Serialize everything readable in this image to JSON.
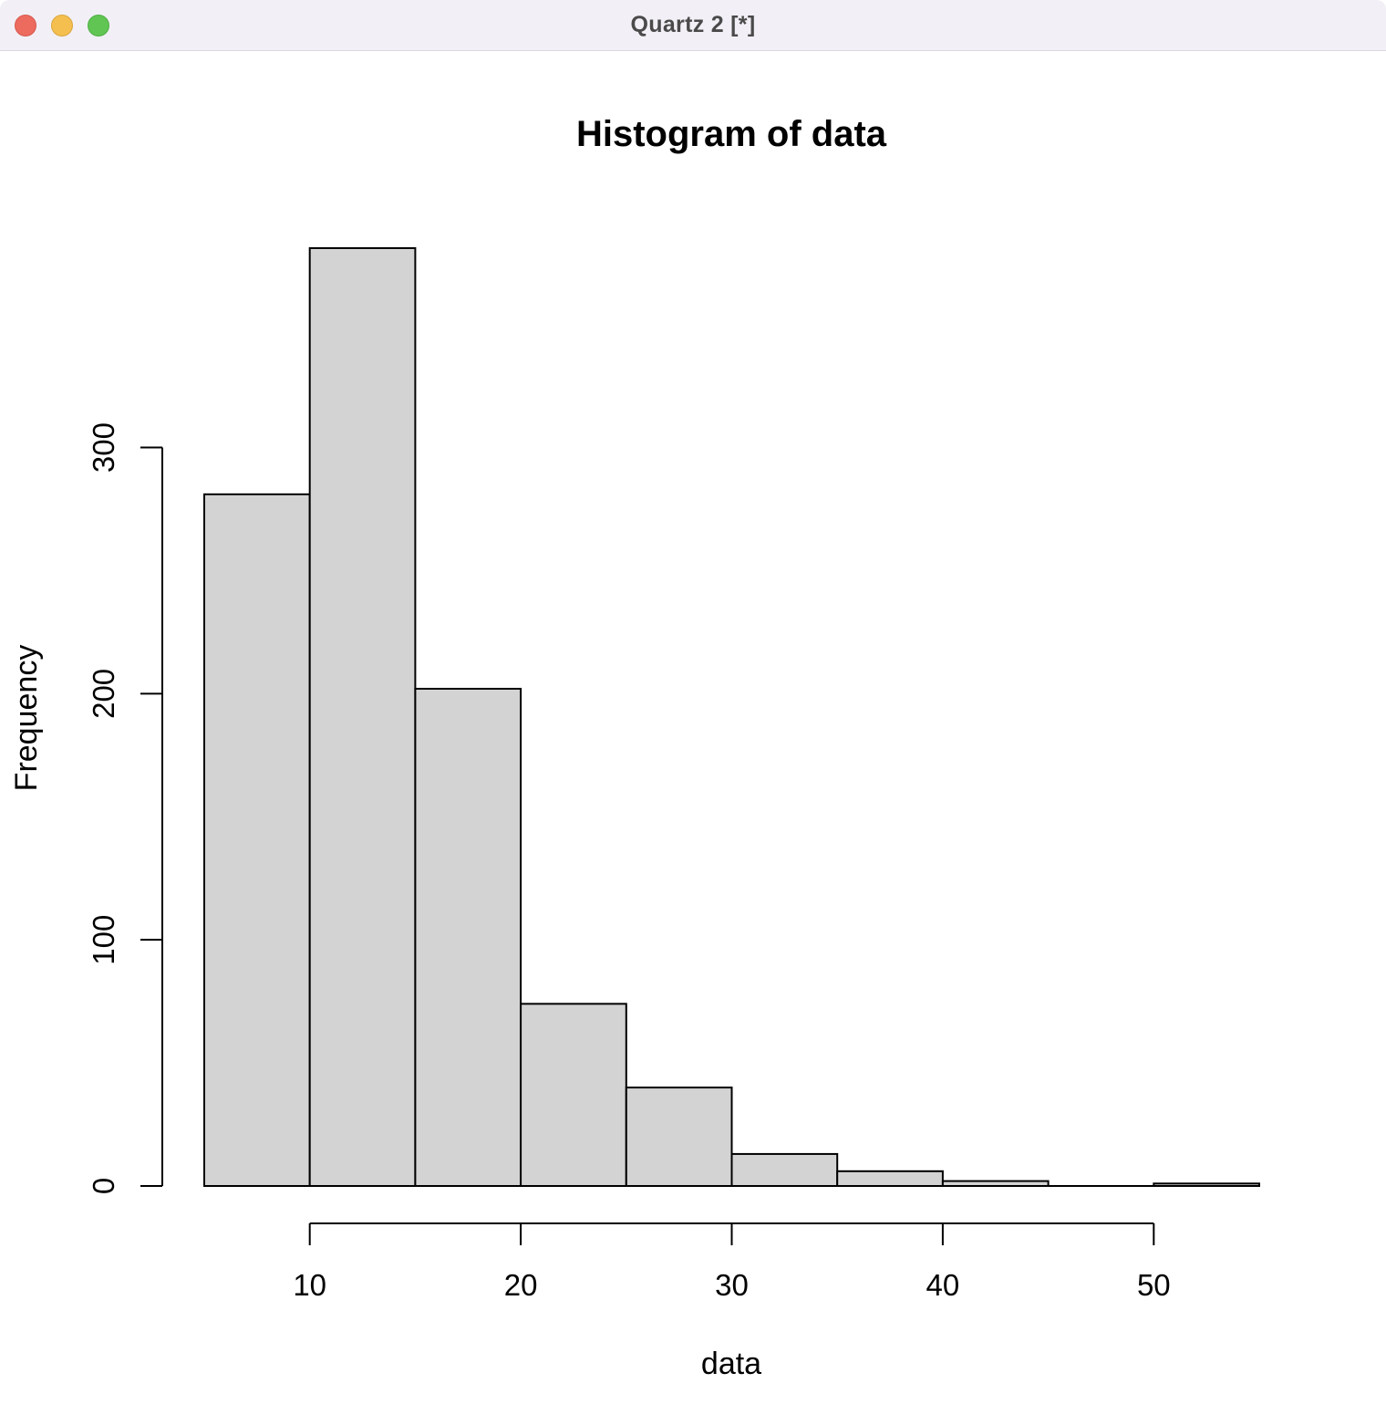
{
  "window": {
    "title": "Quartz 2 [*]",
    "buttons": {
      "close": "close-button",
      "minimize": "minimize-button",
      "zoom": "zoom-button"
    }
  },
  "chart_data": {
    "type": "bar",
    "title": "Histogram of data",
    "xlabel": "data",
    "ylabel": "Frequency",
    "bins": [
      {
        "start": 5,
        "end": 10,
        "count": 281
      },
      {
        "start": 10,
        "end": 15,
        "count": 381
      },
      {
        "start": 15,
        "end": 20,
        "count": 202
      },
      {
        "start": 20,
        "end": 25,
        "count": 74
      },
      {
        "start": 25,
        "end": 30,
        "count": 40
      },
      {
        "start": 30,
        "end": 35,
        "count": 13
      },
      {
        "start": 35,
        "end": 40,
        "count": 6
      },
      {
        "start": 40,
        "end": 45,
        "count": 2
      },
      {
        "start": 45,
        "end": 50,
        "count": 0
      },
      {
        "start": 50,
        "end": 55,
        "count": 1
      }
    ],
    "xticks": [
      10,
      20,
      30,
      40,
      50
    ],
    "yticks": [
      0,
      100,
      200,
      300
    ],
    "xlim": [
      5,
      55
    ],
    "ylim": [
      0,
      381
    ],
    "bar_fill": "#d3d3d3",
    "bar_stroke": "#000000",
    "grid": false
  }
}
